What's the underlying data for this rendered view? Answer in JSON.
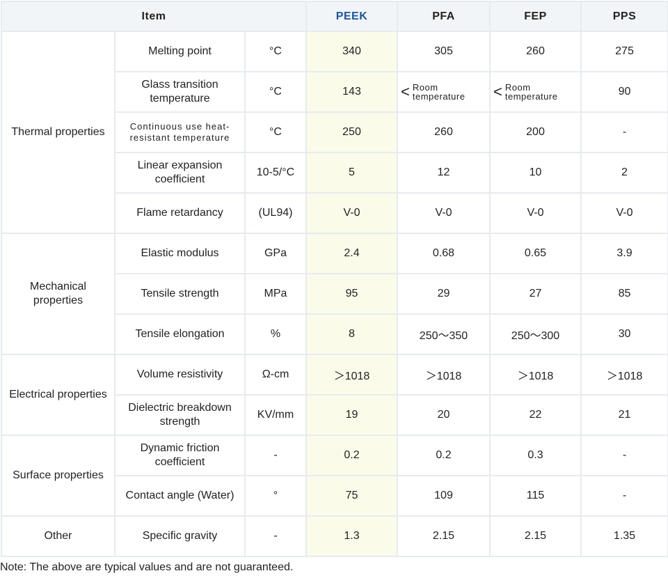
{
  "columns": [
    "Item",
    "PEEK",
    "PFA",
    "FEP",
    "PPS"
  ],
  "rows": [
    {
      "cat": "Thermal properties",
      "prop": "Melting point",
      "unit": "°C",
      "v": [
        "340",
        "305",
        "260",
        "275"
      ]
    },
    {
      "prop": "Glass transition temperature",
      "unit": "°C",
      "v": [
        "143",
        "",
        "",
        "90"
      ],
      "rt": {
        "symbol": "<",
        "text": "Room temperature"
      }
    },
    {
      "prop": "Continuous use heat-resistant temperature",
      "unit": "°C",
      "v": [
        "250",
        "260",
        "200",
        "-"
      ]
    },
    {
      "prop": "Linear expansion coefficient",
      "unit": "10-5/°C",
      "v": [
        "5",
        "12",
        "10",
        "2"
      ]
    },
    {
      "prop": "Flame retardancy",
      "unit": "(UL94)",
      "v": [
        "V-0",
        "V-0",
        "V-0",
        "V-0"
      ]
    },
    {
      "cat": "Mechanical properties",
      "prop": "Elastic modulus",
      "unit": "GPa",
      "v": [
        "2.4",
        "0.68",
        "0.65",
        "3.9"
      ]
    },
    {
      "prop": "Tensile strength",
      "unit": "MPa",
      "v": [
        "95",
        "29",
        "27",
        "85"
      ]
    },
    {
      "prop": "Tensile elongation",
      "unit": "%",
      "v": [
        "8",
        "250～350",
        "250～300",
        "30"
      ]
    },
    {
      "cat": "Electrical properties",
      "prop": "Volume resistivity",
      "unit": "Ω-cm",
      "v": [
        "＞1018",
        "＞1018",
        "＞1018",
        "＞1018"
      ]
    },
    {
      "prop": "Dielectric breakdown strength",
      "unit": "KV/mm",
      "v": [
        "19",
        "20",
        "22",
        "21"
      ]
    },
    {
      "cat": "Surface properties",
      "prop": "Dynamic friction coefficient",
      "unit": "-",
      "v": [
        "0.2",
        "0.2",
        "0.3",
        "-"
      ]
    },
    {
      "prop": "Contact angle (Water)",
      "unit": "°",
      "v": [
        "75",
        "109",
        "115",
        "-"
      ]
    },
    {
      "cat": "Other",
      "prop": "Specific gravity",
      "unit": "-",
      "v": [
        "1.3",
        "2.15",
        "2.15",
        "1.35"
      ]
    }
  ],
  "note": "Note: The above are typical values and are not guaranteed."
}
